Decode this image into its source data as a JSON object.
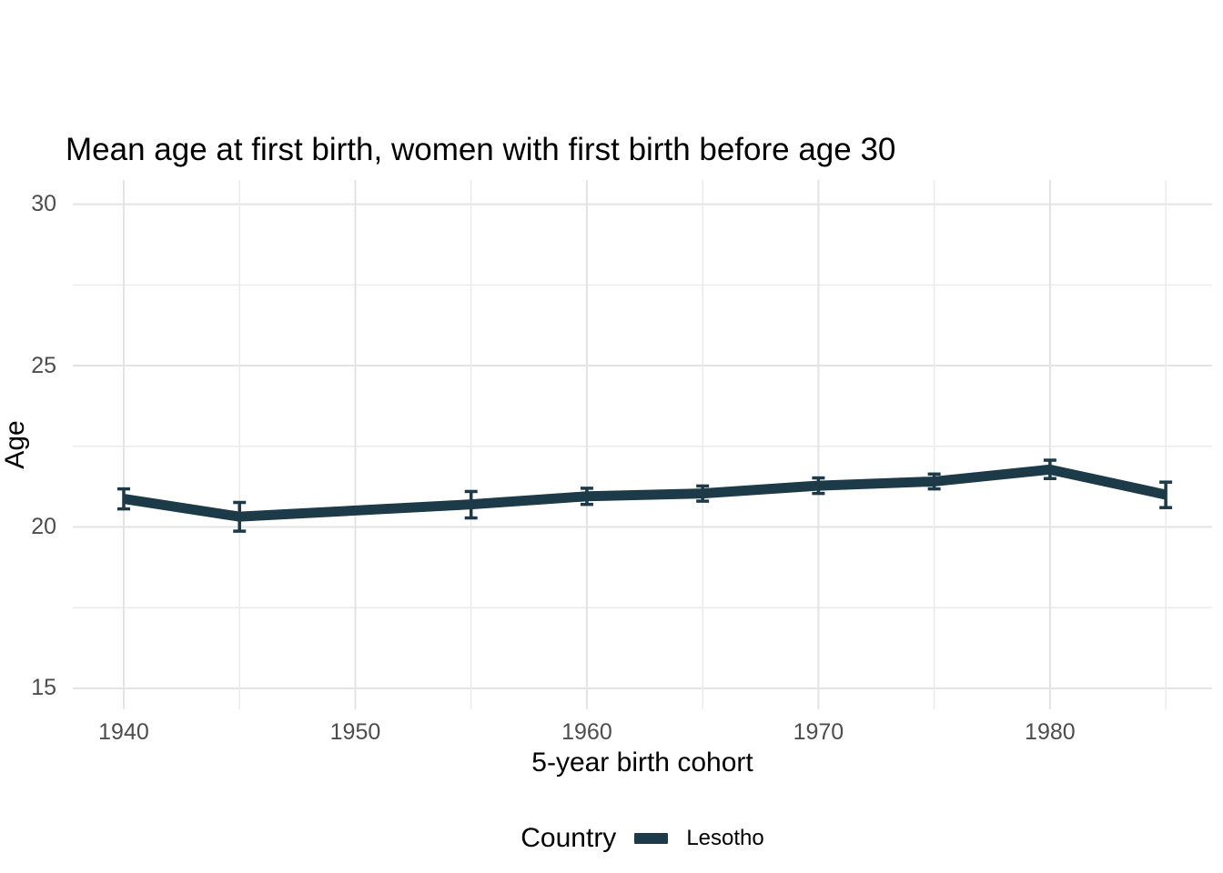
{
  "title": "Mean age at first birth, women with first birth before age 30",
  "axes": {
    "x_title": "5-year birth cohort",
    "y_title": "Age",
    "x_ticks": [
      1940,
      1950,
      1960,
      1970,
      1980
    ],
    "y_ticks": [
      15,
      20,
      25,
      30
    ]
  },
  "legend": {
    "title": "Country",
    "label": "Lesotho"
  },
  "colors": {
    "series": "#1c3a47",
    "grid_major": "#e3e3e3",
    "grid_minor": "#ebebeb",
    "tick_text": "#4d4d4d",
    "background": "#ffffff"
  },
  "chart_data": {
    "type": "line",
    "title": "Mean age at first birth, women with first birth before age 30",
    "xlabel": "5-year birth cohort",
    "ylabel": "Age",
    "legend_position": "bottom",
    "legend_title": "Country",
    "grid": true,
    "x": [
      1940,
      1945,
      1955,
      1960,
      1965,
      1970,
      1975,
      1980,
      1985
    ],
    "series": [
      {
        "name": "Lesotho",
        "color": "#1c3a47",
        "values": [
          20.87,
          20.32,
          20.7,
          20.95,
          21.04,
          21.28,
          21.41,
          21.78,
          21.0
        ],
        "ci_low": [
          20.56,
          19.87,
          20.28,
          20.7,
          20.8,
          21.04,
          21.18,
          21.5,
          20.6
        ],
        "ci_high": [
          21.18,
          20.76,
          21.1,
          21.2,
          21.27,
          21.52,
          21.64,
          22.07,
          21.39
        ]
      }
    ],
    "xlim": [
      1937.8,
      1987.0
    ],
    "ylim": [
      14.35,
      30.75
    ],
    "x_ticks": [
      1940,
      1950,
      1960,
      1970,
      1980
    ],
    "y_ticks": [
      15,
      20,
      25,
      30
    ],
    "x_gridlines_minor": [
      1945,
      1955,
      1965,
      1975,
      1985
    ],
    "y_gridlines_minor": [
      17.5,
      22.5,
      27.5
    ]
  }
}
